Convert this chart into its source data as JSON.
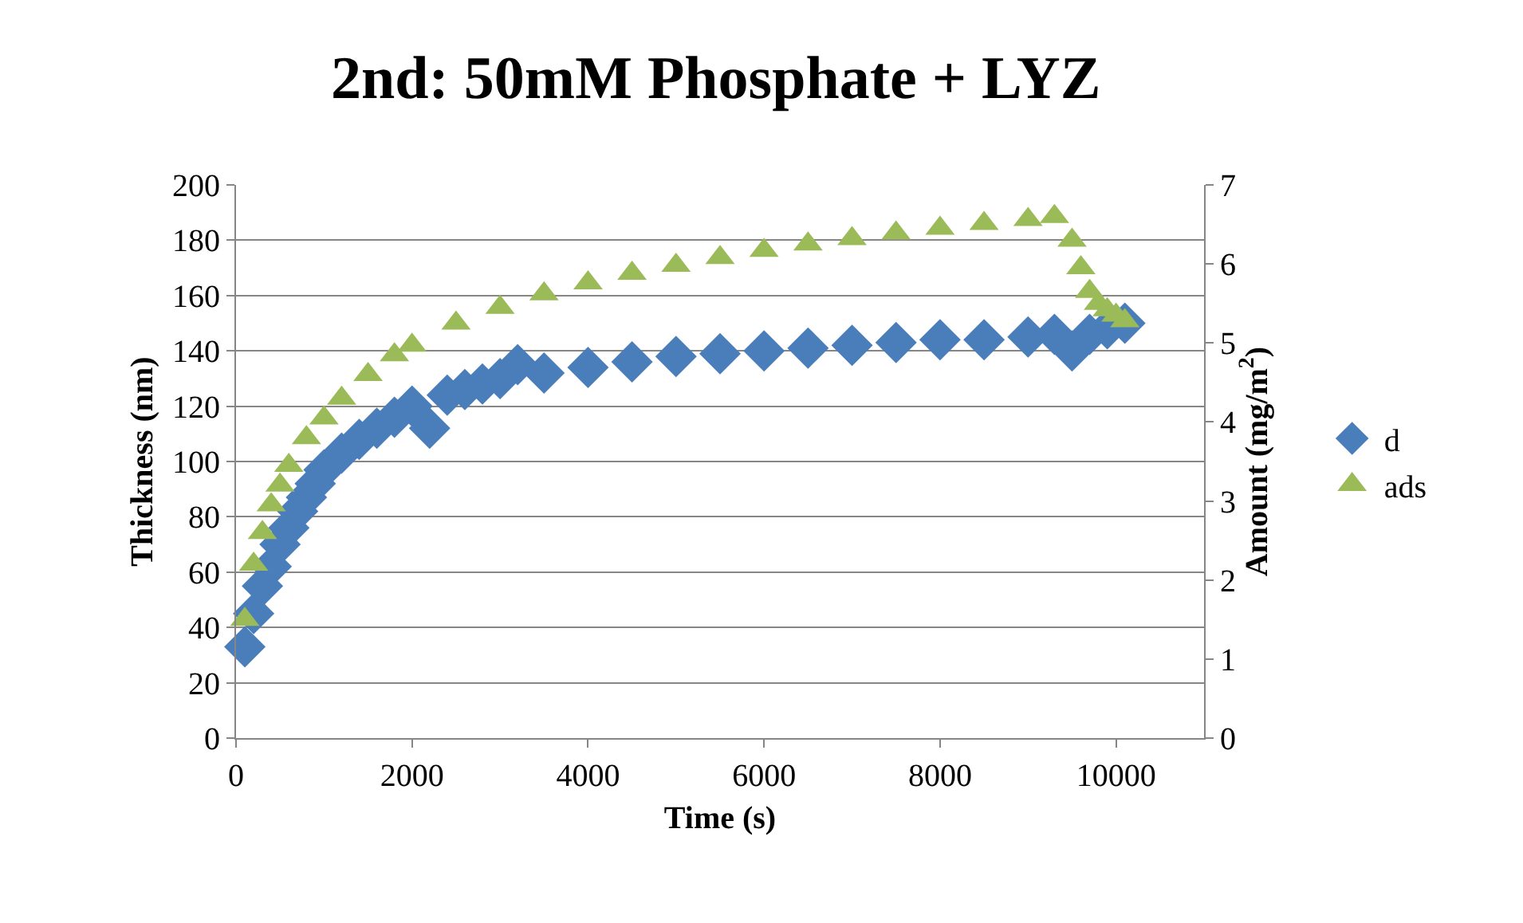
{
  "chart_data": {
    "type": "scatter",
    "title": "2nd: 50mM Phosphate + LYZ",
    "xlabel": "Time (s)",
    "ylabel": "Thickness (nm)",
    "y2label": "Amount (mg/m$^{2}$)",
    "xlim": [
      0,
      11000
    ],
    "xticks": [
      0,
      2000,
      4000,
      6000,
      8000,
      10000
    ],
    "ylim": [
      0,
      200
    ],
    "yticks": [
      0,
      20,
      40,
      60,
      80,
      100,
      120,
      140,
      160,
      180,
      200
    ],
    "y2lim": [
      0,
      7
    ],
    "y2ticks": [
      0,
      1,
      2,
      3,
      4,
      5,
      6,
      7
    ],
    "grid": "y",
    "legend": "right",
    "series": [
      {
        "name": "d",
        "color": "#4a7ebb",
        "marker": "diamond",
        "x": [
          100,
          200,
          300,
          400,
          500,
          600,
          700,
          800,
          900,
          1000,
          1200,
          1400,
          1600,
          1800,
          2000,
          2200,
          2400,
          2600,
          2800,
          3000,
          3200,
          3500,
          4000,
          4500,
          5000,
          5500,
          6000,
          6500,
          7000,
          7500,
          8000,
          8500,
          9000,
          9300,
          9500,
          9700,
          9900,
          10100
        ],
        "values": [
          33,
          45,
          55,
          62,
          70,
          76,
          82,
          87,
          92,
          97,
          103,
          108,
          112,
          116,
          120,
          112,
          124,
          126,
          128,
          130,
          135,
          132,
          134,
          136,
          138,
          139,
          140,
          141,
          142,
          143,
          144,
          144,
          145,
          146,
          140,
          146,
          148,
          150
        ]
      },
      {
        "name": "ads",
        "color": "#9bbb59",
        "marker": "triangle",
        "axis": "y2",
        "x": [
          100,
          200,
          300,
          400,
          500,
          600,
          800,
          1000,
          1200,
          1500,
          1800,
          2000,
          2500,
          3000,
          3500,
          4000,
          4500,
          5000,
          5500,
          6000,
          6500,
          7000,
          7500,
          8000,
          8500,
          9000,
          9300,
          9500,
          9600,
          9700,
          9800,
          9900,
          10000,
          10100
        ],
        "values": [
          1.5,
          2.2,
          2.6,
          2.95,
          3.2,
          3.45,
          3.8,
          4.05,
          4.3,
          4.6,
          4.85,
          4.97,
          5.25,
          5.45,
          5.62,
          5.76,
          5.88,
          5.98,
          6.08,
          6.17,
          6.25,
          6.32,
          6.39,
          6.45,
          6.51,
          6.56,
          6.6,
          6.3,
          5.95,
          5.65,
          5.5,
          5.42,
          5.35,
          5.28
        ]
      }
    ]
  }
}
